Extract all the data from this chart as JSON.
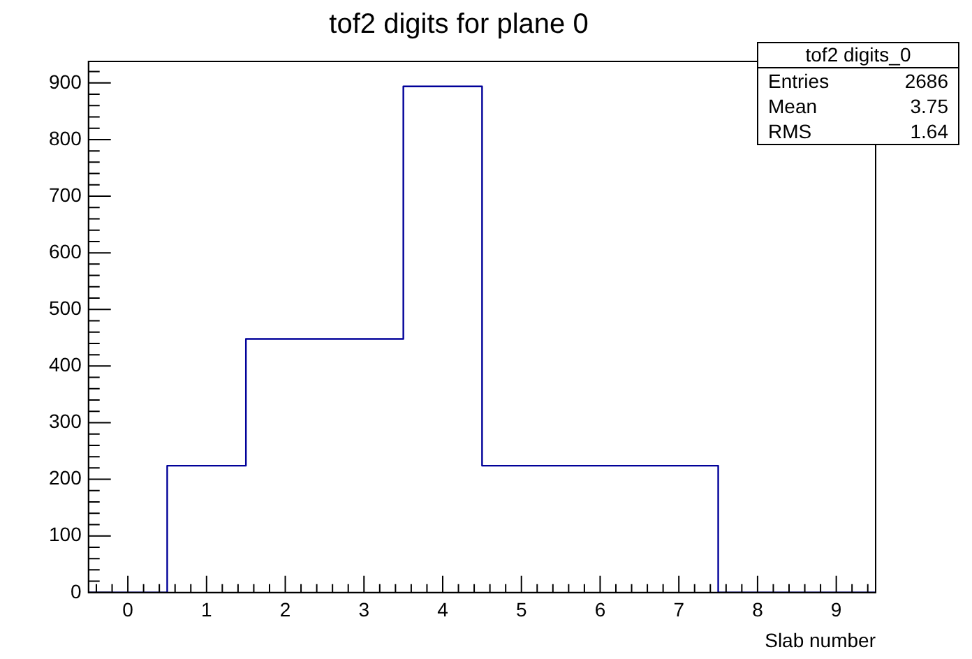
{
  "chart_data": {
    "type": "histogram",
    "title": "tof2 digits for plane 0",
    "xlabel": "Slab number",
    "bins": [
      -0.5,
      0.5,
      1.5,
      2.5,
      3.5,
      4.5,
      5.5,
      6.5,
      7.5,
      8.5,
      9.5
    ],
    "values": [
      0,
      224,
      448,
      448,
      894,
      224,
      224,
      224,
      0,
      0
    ],
    "color": "#000099",
    "xlim": [
      -0.5,
      9.5
    ],
    "xticks": [
      {
        "value": -0.4,
        "label": null
      },
      {
        "value": -0.2,
        "label": null
      },
      0,
      {
        "value": 0.2,
        "label": null
      },
      {
        "value": 0.4,
        "label": null
      },
      {
        "value": 0.6,
        "label": null
      },
      {
        "value": 0.8,
        "label": null
      },
      1,
      {
        "value": 1.2,
        "label": null
      },
      {
        "value": 1.4,
        "label": null
      },
      {
        "value": 1.6,
        "label": null
      },
      {
        "value": 1.8,
        "label": null
      },
      2,
      {
        "value": 2.2,
        "label": null
      },
      {
        "value": 2.4,
        "label": null
      },
      {
        "value": 2.6,
        "label": null
      },
      {
        "value": 2.8,
        "label": null
      },
      3,
      {
        "value": 3.2,
        "label": null
      },
      {
        "value": 3.4,
        "label": null
      },
      {
        "value": 3.6,
        "label": null
      },
      {
        "value": 3.8,
        "label": null
      },
      4,
      {
        "value": 4.2,
        "label": null
      },
      {
        "value": 4.4,
        "label": null
      },
      {
        "value": 4.6,
        "label": null
      },
      {
        "value": 4.8,
        "label": null
      },
      5,
      {
        "value": 5.2,
        "label": null
      },
      {
        "value": 5.4,
        "label": null
      },
      {
        "value": 5.6,
        "label": null
      },
      {
        "value": 5.8,
        "label": null
      },
      6,
      {
        "value": 6.2,
        "label": null
      },
      {
        "value": 6.4,
        "label": null
      },
      {
        "value": 6.6,
        "label": null
      },
      {
        "value": 6.8,
        "label": null
      },
      7,
      {
        "value": 7.2,
        "label": null
      },
      {
        "value": 7.4,
        "label": null
      },
      {
        "value": 7.6,
        "label": null
      },
      {
        "value": 7.8,
        "label": null
      },
      8,
      {
        "value": 8.2,
        "label": null
      },
      {
        "value": 8.4,
        "label": null
      },
      {
        "value": 8.6,
        "label": null
      },
      {
        "value": 8.8,
        "label": null
      },
      9,
      {
        "value": 9.2,
        "label": null
      },
      {
        "value": 9.4,
        "label": null
      }
    ],
    "ylim": [
      0,
      938
    ],
    "yticks": [
      0,
      {
        "value": 20,
        "label": null
      },
      {
        "value": 40,
        "label": null
      },
      {
        "value": 60,
        "label": null
      },
      {
        "value": 80,
        "label": null
      },
      100,
      {
        "value": 120,
        "label": null
      },
      {
        "value": 140,
        "label": null
      },
      {
        "value": 160,
        "label": null
      },
      {
        "value": 180,
        "label": null
      },
      200,
      {
        "value": 220,
        "label": null
      },
      {
        "value": 240,
        "label": null
      },
      {
        "value": 260,
        "label": null
      },
      {
        "value": 280,
        "label": null
      },
      300,
      {
        "value": 320,
        "label": null
      },
      {
        "value": 340,
        "label": null
      },
      {
        "value": 360,
        "label": null
      },
      {
        "value": 380,
        "label": null
      },
      400,
      {
        "value": 420,
        "label": null
      },
      {
        "value": 440,
        "label": null
      },
      {
        "value": 460,
        "label": null
      },
      {
        "value": 480,
        "label": null
      },
      500,
      {
        "value": 520,
        "label": null
      },
      {
        "value": 540,
        "label": null
      },
      {
        "value": 560,
        "label": null
      },
      {
        "value": 580,
        "label": null
      },
      600,
      {
        "value": 620,
        "label": null
      },
      {
        "value": 640,
        "label": null
      },
      {
        "value": 660,
        "label": null
      },
      {
        "value": 680,
        "label": null
      },
      700,
      {
        "value": 720,
        "label": null
      },
      {
        "value": 740,
        "label": null
      },
      {
        "value": 760,
        "label": null
      },
      {
        "value": 780,
        "label": null
      },
      800,
      {
        "value": 820,
        "label": null
      },
      {
        "value": 840,
        "label": null
      },
      {
        "value": 860,
        "label": null
      },
      {
        "value": 880,
        "label": null
      },
      900,
      {
        "value": 920,
        "label": null
      }
    ],
    "annotations": [
      "tof2 digits_0",
      "Entries",
      "2686",
      "Mean",
      "3.75",
      "RMS",
      "1.64"
    ]
  }
}
